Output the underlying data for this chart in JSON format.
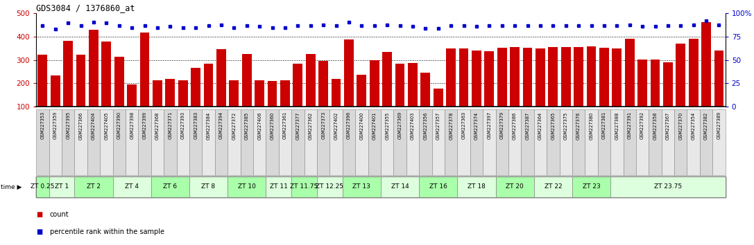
{
  "title": "GDS3084 / 1376860_at",
  "bar_color": "#CC0000",
  "dot_color": "#0000CC",
  "ylim_left": [
    100,
    500
  ],
  "ylim_right": [
    0,
    100
  ],
  "yticks_left": [
    100,
    200,
    300,
    400,
    500
  ],
  "yticks_right": [
    0,
    25,
    50,
    75,
    100
  ],
  "yticklabels_right": [
    "0",
    "25",
    "50",
    "75",
    "100%"
  ],
  "samples": [
    "GSM227353",
    "GSM227359",
    "GSM227395",
    "GSM227366",
    "GSM227404",
    "GSM227405",
    "GSM227390",
    "GSM227398",
    "GSM227399",
    "GSM227368",
    "GSM227371",
    "GSM227393",
    "GSM227383",
    "GSM227384",
    "GSM227394",
    "GSM227372",
    "GSM227385",
    "GSM227406",
    "GSM227360",
    "GSM227361",
    "GSM227377",
    "GSM227362",
    "GSM227373",
    "GSM227402",
    "GSM227396",
    "GSM227400",
    "GSM227401",
    "GSM227355",
    "GSM227369",
    "GSM227403",
    "GSM227356",
    "GSM227357",
    "GSM227378",
    "GSM227363",
    "GSM227374",
    "GSM227397",
    "GSM227379",
    "GSM227386",
    "GSM227387",
    "GSM227364",
    "GSM227365",
    "GSM227375",
    "GSM227376",
    "GSM227380",
    "GSM227381",
    "GSM227388",
    "GSM227391",
    "GSM227392",
    "GSM227358",
    "GSM227367",
    "GSM227370",
    "GSM227354",
    "GSM227382",
    "GSM227389"
  ],
  "counts": [
    322,
    233,
    383,
    322,
    430,
    380,
    315,
    195,
    418,
    212,
    220,
    212,
    267,
    285,
    348,
    213,
    325,
    213,
    210,
    214,
    285,
    327,
    297,
    220,
    388,
    238,
    300,
    334,
    285,
    286,
    246,
    178,
    351,
    350,
    340,
    338,
    353,
    356,
    352,
    350,
    355,
    355,
    355,
    360,
    353,
    350,
    391,
    303,
    303,
    289,
    372,
    390,
    462,
    340
  ],
  "percentile_ranks": [
    87,
    83,
    90,
    87,
    91,
    90,
    87,
    85,
    87,
    85,
    86,
    85,
    85,
    87,
    88,
    85,
    87,
    86,
    85,
    85,
    87,
    87,
    88,
    87,
    91,
    87,
    87,
    88,
    87,
    86,
    84,
    84,
    87,
    87,
    86,
    87,
    87,
    87,
    87,
    87,
    87,
    87,
    87,
    87,
    87,
    87,
    88,
    86,
    86,
    87,
    87,
    88,
    92,
    88
  ],
  "time_groups": [
    {
      "label": "ZT 0.25",
      "start": 0,
      "end": 1,
      "color": "#aaffaa"
    },
    {
      "label": "ZT 1",
      "start": 1,
      "end": 3,
      "color": "#ddffdd"
    },
    {
      "label": "ZT 2",
      "start": 3,
      "end": 6,
      "color": "#aaffaa"
    },
    {
      "label": "ZT 4",
      "start": 6,
      "end": 9,
      "color": "#ddffdd"
    },
    {
      "label": "ZT 6",
      "start": 9,
      "end": 12,
      "color": "#aaffaa"
    },
    {
      "label": "ZT 8",
      "start": 12,
      "end": 15,
      "color": "#ddffdd"
    },
    {
      "label": "ZT 10",
      "start": 15,
      "end": 18,
      "color": "#aaffaa"
    },
    {
      "label": "ZT 11",
      "start": 18,
      "end": 20,
      "color": "#ddffdd"
    },
    {
      "label": "ZT 11.75",
      "start": 20,
      "end": 22,
      "color": "#aaffaa"
    },
    {
      "label": "ZT 12.25",
      "start": 22,
      "end": 24,
      "color": "#ddffdd"
    },
    {
      "label": "ZT 13",
      "start": 24,
      "end": 27,
      "color": "#aaffaa"
    },
    {
      "label": "ZT 14",
      "start": 27,
      "end": 30,
      "color": "#ddffdd"
    },
    {
      "label": "ZT 16",
      "start": 30,
      "end": 33,
      "color": "#aaffaa"
    },
    {
      "label": "ZT 18",
      "start": 33,
      "end": 36,
      "color": "#ddffdd"
    },
    {
      "label": "ZT 20",
      "start": 36,
      "end": 39,
      "color": "#aaffaa"
    },
    {
      "label": "ZT 22",
      "start": 39,
      "end": 42,
      "color": "#ddffdd"
    },
    {
      "label": "ZT 23",
      "start": 42,
      "end": 45,
      "color": "#aaffaa"
    },
    {
      "label": "ZT 23.75",
      "start": 45,
      "end": 54,
      "color": "#ddffdd"
    }
  ],
  "bg_color": "#ffffff",
  "plot_bg_color": "#ffffff",
  "axis_label_color_left": "#CC0000",
  "axis_label_color_right": "#0000CC",
  "xticklabel_bg": "#d8d8d8",
  "xticklabel_bg_alt": "#e8e8e8"
}
